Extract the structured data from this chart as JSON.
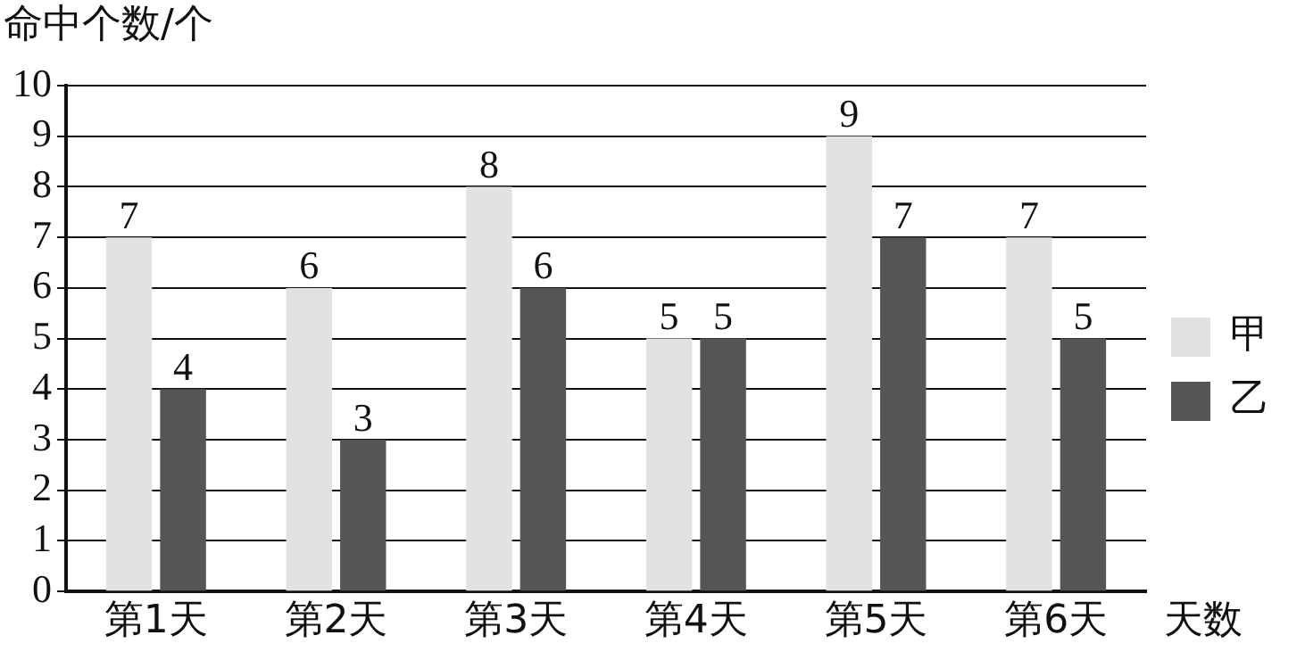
{
  "chart_data": {
    "type": "bar",
    "xlabel": "天数",
    "ylabel": "命中个数/个",
    "categories": [
      "第1天",
      "第2天",
      "第3天",
      "第4天",
      "第5天",
      "第6天"
    ],
    "series": [
      {
        "name": "甲",
        "color": "#e2e2e2",
        "values": [
          7,
          6,
          8,
          5,
          9,
          7
        ]
      },
      {
        "name": "乙",
        "color": "#555555",
        "values": [
          4,
          3,
          6,
          5,
          7,
          5
        ]
      }
    ],
    "ylim": [
      0,
      10
    ],
    "yticks": [
      0,
      1,
      2,
      3,
      4,
      5,
      6,
      7,
      8,
      9,
      10
    ],
    "grid": "y",
    "legend": "right",
    "data_labels": true
  }
}
